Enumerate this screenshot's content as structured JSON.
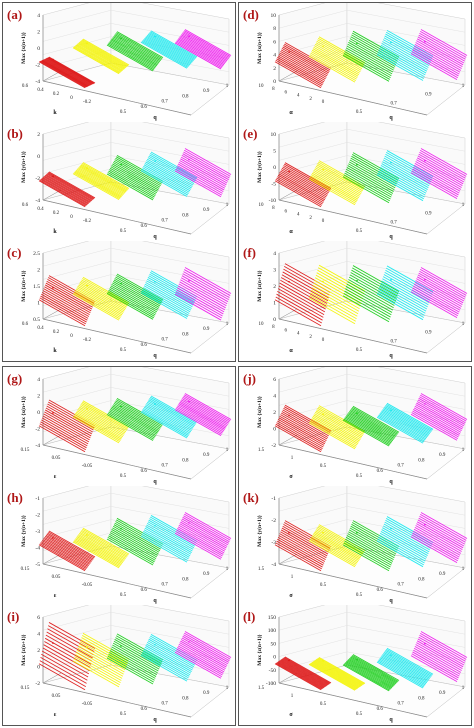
{
  "chart_data": [
    {
      "type": "scatter",
      "panel_label": "(a)",
      "zlabel": "Max {x(n+1)}",
      "ylabel": "k",
      "xlabel": "q",
      "ztick_labels": [
        "4",
        "2",
        "0",
        "-2",
        "-4"
      ],
      "yticks": [
        "0.6",
        "0.4",
        "0.2",
        "0",
        "-0.2"
      ],
      "xticks": [
        "0.5",
        "0.6",
        "0.7",
        "0.8",
        "0.9",
        "1"
      ],
      "series": [
        {
          "color": "#dd1111",
          "values": [
            {
              "x": 0.5,
              "y": [
                -2.2,
                -1.5
              ]
            }
          ]
        },
        {
          "color": "#f4f400",
          "values": [
            {
              "x": 0.6,
              "y": [
                0.5,
                1.8
              ]
            }
          ]
        },
        {
          "color": "#11cc11",
          "values": [
            {
              "x": 0.7,
              "y": [
                1.5,
                3.5
              ]
            }
          ]
        },
        {
          "color": "#11e8ee",
          "values": [
            {
              "x": 0.8,
              "y": [
                2.5,
                4.2
              ]
            }
          ]
        },
        {
          "color": "#ee11ee",
          "values": [
            {
              "x": 0.9,
              "y": [
                3.0,
                5.0
              ]
            }
          ]
        }
      ]
    },
    {
      "type": "scatter",
      "panel_label": "(b)",
      "zlabel": "Max {y(n+1)}",
      "ylabel": "k",
      "xlabel": "q",
      "ztick_labels": [
        "2",
        "0",
        "-2",
        "-4"
      ],
      "yticks": [
        "0.6",
        "0.4",
        "0.2",
        "0",
        "-0.2"
      ],
      "xticks": [
        "0.5",
        "0.6",
        "0.7",
        "0.8",
        "0.9",
        "1"
      ],
      "series": [
        {
          "color": "#dd1111",
          "values": [
            {
              "x": 0.5,
              "y": [
                -4.0,
                -2.8
              ]
            }
          ]
        },
        {
          "color": "#f4f400",
          "values": [
            {
              "x": 0.6,
              "y": [
                -2.5,
                -1.0
              ]
            }
          ]
        },
        {
          "color": "#11cc11",
          "values": [
            {
              "x": 0.7,
              "y": [
                -2.0,
                0.5
              ]
            }
          ]
        },
        {
          "color": "#11e8ee",
          "values": [
            {
              "x": 0.8,
              "y": [
                -1.0,
                1.5
              ]
            }
          ]
        },
        {
          "color": "#ee11ee",
          "values": [
            {
              "x": 0.9,
              "y": [
                -0.5,
                2.5
              ]
            }
          ]
        }
      ]
    },
    {
      "type": "scatter",
      "panel_label": "(c)",
      "zlabel": "Max {z(n+1)}",
      "ylabel": "k",
      "xlabel": "q",
      "ztick_labels": [
        "2.5",
        "2",
        "1.5",
        "1",
        "0.5"
      ],
      "yticks": [
        "0.6",
        "0.4",
        "0.2",
        "0",
        "-0.2"
      ],
      "xticks": [
        "0.5",
        "0.6",
        "0.7",
        "0.8",
        "0.9",
        "1"
      ],
      "series": [
        {
          "color": "#dd1111",
          "values": [
            {
              "x": 0.5,
              "y": [
                0.6,
                1.6
              ]
            }
          ]
        },
        {
          "color": "#f4f400",
          "values": [
            {
              "x": 0.6,
              "y": [
                1.0,
                1.7
              ]
            }
          ]
        },
        {
          "color": "#11cc11",
          "values": [
            {
              "x": 0.7,
              "y": [
                1.2,
                2.0
              ]
            }
          ]
        },
        {
          "color": "#11e8ee",
          "values": [
            {
              "x": 0.8,
              "y": [
                1.4,
                2.3
              ]
            }
          ]
        },
        {
          "color": "#ee11ee",
          "values": [
            {
              "x": 0.9,
              "y": [
                1.5,
                2.6
              ]
            }
          ]
        }
      ]
    },
    {
      "type": "scatter",
      "panel_label": "(d)",
      "zlabel": "Max {x(n+1)}",
      "ylabel": "α",
      "xlabel": "q",
      "ztick_labels": [
        "10",
        "8",
        "6",
        "4",
        "2",
        "0"
      ],
      "yticks": [
        "10",
        "8",
        "6",
        "4",
        "2",
        "0"
      ],
      "xticks": [
        "0.5",
        "0.7",
        "0.9",
        "1"
      ],
      "series": [
        {
          "color": "#dd1111",
          "values": [
            {
              "x": 0.5,
              "y": [
                0,
                4
              ]
            }
          ]
        },
        {
          "color": "#f4f400",
          "values": [
            {
              "x": 0.6,
              "y": [
                2,
                6
              ]
            }
          ]
        },
        {
          "color": "#11cc11",
          "values": [
            {
              "x": 0.7,
              "y": [
                3,
                8
              ]
            }
          ]
        },
        {
          "color": "#11e8ee",
          "values": [
            {
              "x": 0.8,
              "y": [
                4,
                9
              ]
            }
          ]
        },
        {
          "color": "#ee11ee",
          "values": [
            {
              "x": 0.9,
              "y": [
                5,
                10
              ]
            }
          ]
        }
      ]
    },
    {
      "type": "scatter",
      "panel_label": "(e)",
      "zlabel": "Max {y(n+1)}",
      "ylabel": "α",
      "xlabel": "q",
      "ztick_labels": [
        "10",
        "5",
        "0",
        "-5",
        "-10"
      ],
      "yticks": [
        "10",
        "8",
        "6",
        "4",
        "2",
        "0"
      ],
      "xticks": [
        "0.5",
        "0.7",
        "0.9",
        "1"
      ],
      "series": [
        {
          "color": "#dd1111",
          "values": [
            {
              "x": 0.5,
              "y": [
                -5,
                -2
              ]
            }
          ]
        },
        {
          "color": "#f4f400",
          "values": [
            {
              "x": 0.6,
              "y": [
                -4,
                -1
              ]
            }
          ]
        },
        {
          "color": "#11cc11",
          "values": [
            {
              "x": 0.7,
              "y": [
                -3,
                1
              ]
            }
          ]
        },
        {
          "color": "#11e8ee",
          "values": [
            {
              "x": 0.8,
              "y": [
                -2,
                2
              ]
            }
          ]
        },
        {
          "color": "#ee11ee",
          "values": [
            {
              "x": 0.9,
              "y": [
                -1,
                3
              ]
            }
          ]
        }
      ]
    },
    {
      "type": "scatter",
      "panel_label": "(f)",
      "zlabel": "Max {z(n+1)}",
      "ylabel": "α",
      "xlabel": "q",
      "ztick_labels": [
        "4",
        "3",
        "2",
        "1",
        "0"
      ],
      "yticks": [
        "10",
        "8",
        "6",
        "4",
        "2",
        "0"
      ],
      "xticks": [
        "0.5",
        "0.7",
        "0.9",
        "1"
      ],
      "series": [
        {
          "color": "#dd1111",
          "values": [
            {
              "x": 0.5,
              "y": [
                0,
                3
              ]
            }
          ]
        },
        {
          "color": "#f4f400",
          "values": [
            {
              "x": 0.6,
              "y": [
                0.5,
                3.2
              ]
            }
          ]
        },
        {
          "color": "#11cc11",
          "values": [
            {
              "x": 0.7,
              "y": [
                1,
                3.5
              ]
            }
          ]
        },
        {
          "color": "#11e8ee",
          "values": [
            {
              "x": 0.8,
              "y": [
                1.5,
                3.8
              ]
            }
          ]
        },
        {
          "color": "#ee11ee",
          "values": [
            {
              "x": 0.9,
              "y": [
                2,
                4
              ]
            }
          ]
        }
      ]
    },
    {
      "type": "scatter",
      "panel_label": "(g)",
      "zlabel": "Max {x(n+1)}",
      "ylabel": "ε",
      "xlabel": "q",
      "ztick_labels": [
        "4",
        "2",
        "0",
        "-2",
        "-4"
      ],
      "yticks": [
        "0.15",
        "0.05",
        "-0.05"
      ],
      "xticks": [
        "0.5",
        "0.6",
        "0.7",
        "0.8",
        "0.9",
        "1"
      ],
      "series": [
        {
          "color": "#dd1111",
          "values": [
            {
              "x": 0.5,
              "y": [
                -3,
                1
              ]
            }
          ]
        },
        {
          "color": "#f4f400",
          "values": [
            {
              "x": 0.6,
              "y": [
                -1,
                1.5
              ]
            }
          ]
        },
        {
          "color": "#11cc11",
          "values": [
            {
              "x": 0.7,
              "y": [
                0,
                2.5
              ]
            }
          ]
        },
        {
          "color": "#11e8ee",
          "values": [
            {
              "x": 0.8,
              "y": [
                1,
                3.5
              ]
            }
          ]
        },
        {
          "color": "#ee11ee",
          "values": [
            {
              "x": 0.9,
              "y": [
                2,
                4.5
              ]
            }
          ]
        }
      ]
    },
    {
      "type": "scatter",
      "panel_label": "(h)",
      "zlabel": "Max {y(n+1)}",
      "ylabel": "ε",
      "xlabel": "q",
      "ztick_labels": [
        "-1",
        "-2",
        "-3",
        "-4",
        "-5"
      ],
      "yticks": [
        "0.15",
        "0.05",
        "-0.05"
      ],
      "xticks": [
        "0.5",
        "0.6",
        "0.7",
        "0.8",
        "0.9",
        "1"
      ],
      "series": [
        {
          "color": "#dd1111",
          "values": [
            {
              "x": 0.5,
              "y": [
                -4.5,
                -3.5
              ]
            }
          ]
        },
        {
          "color": "#f4f400",
          "values": [
            {
              "x": 0.6,
              "y": [
                -4,
                -3
              ]
            }
          ]
        },
        {
          "color": "#11cc11",
          "values": [
            {
              "x": 0.7,
              "y": [
                -3.5,
                -2
              ]
            }
          ]
        },
        {
          "color": "#11e8ee",
          "values": [
            {
              "x": 0.8,
              "y": [
                -3,
                -1.5
              ]
            }
          ]
        },
        {
          "color": "#ee11ee",
          "values": [
            {
              "x": 0.9,
              "y": [
                -2.5,
                -1
              ]
            }
          ]
        }
      ]
    },
    {
      "type": "scatter",
      "panel_label": "(i)",
      "zlabel": "Max {z(n+1)}",
      "ylabel": "ε",
      "xlabel": "q",
      "ztick_labels": [
        "6",
        "4",
        "2",
        "0",
        "-2"
      ],
      "yticks": [
        "0.15",
        "0.05",
        "-0.05"
      ],
      "xticks": [
        "0.5",
        "0.6",
        "0.7",
        "0.8",
        "0.9",
        "1"
      ],
      "series": [
        {
          "color": "#dd1111",
          "values": [
            {
              "x": 0.5,
              "y": [
                -1,
                5
              ]
            }
          ]
        },
        {
          "color": "#f4f400",
          "values": [
            {
              "x": 0.6,
              "y": [
                0,
                4
              ]
            }
          ]
        },
        {
          "color": "#11cc11",
          "values": [
            {
              "x": 0.7,
              "y": [
                1,
                4.5
              ]
            }
          ]
        },
        {
          "color": "#11e8ee",
          "values": [
            {
              "x": 0.8,
              "y": [
                2,
                5
              ]
            }
          ]
        },
        {
          "color": "#ee11ee",
          "values": [
            {
              "x": 0.9,
              "y": [
                3,
                6
              ]
            }
          ]
        }
      ]
    },
    {
      "type": "scatter",
      "panel_label": "(j)",
      "zlabel": "Max {x(n+1)}",
      "ylabel": "σ",
      "xlabel": "q",
      "ztick_labels": [
        "6",
        "4",
        "2",
        "0",
        "-2"
      ],
      "yticks": [
        "1.5",
        "1",
        "0.5"
      ],
      "xticks": [
        "0.5",
        "0.6",
        "0.7",
        "0.8",
        "0.9",
        "1"
      ],
      "series": [
        {
          "color": "#dd1111",
          "values": [
            {
              "x": 0.5,
              "y": [
                -1,
                2
              ]
            }
          ]
        },
        {
          "color": "#f4f400",
          "values": [
            {
              "x": 0.6,
              "y": [
                0,
                2.5
              ]
            }
          ]
        },
        {
          "color": "#11cc11",
          "values": [
            {
              "x": 0.7,
              "y": [
                1,
                3
              ]
            }
          ]
        },
        {
          "color": "#11e8ee",
          "values": [
            {
              "x": 0.8,
              "y": [
                2,
                4
              ]
            }
          ]
        },
        {
          "color": "#ee11ee",
          "values": [
            {
              "x": 0.9,
              "y": [
                3,
                6
              ]
            }
          ]
        }
      ]
    },
    {
      "type": "scatter",
      "panel_label": "(k)",
      "zlabel": "Max {y(n+1)}",
      "ylabel": "σ",
      "xlabel": "q",
      "ztick_labels": [
        "-1",
        "-2",
        "-3",
        "-4"
      ],
      "yticks": [
        "1.5",
        "1",
        "0.5"
      ],
      "xticks": [
        "0.5",
        "0.6",
        "0.7",
        "0.8",
        "0.9",
        "1"
      ],
      "series": [
        {
          "color": "#dd1111",
          "values": [
            {
              "x": 0.5,
              "y": [
                -4,
                -2.5
              ]
            }
          ]
        },
        {
          "color": "#f4f400",
          "values": [
            {
              "x": 0.6,
              "y": [
                -3.5,
                -2.5
              ]
            }
          ]
        },
        {
          "color": "#11cc11",
          "values": [
            {
              "x": 0.7,
              "y": [
                -3.5,
                -2
              ]
            }
          ]
        },
        {
          "color": "#11e8ee",
          "values": [
            {
              "x": 0.8,
              "y": [
                -3,
                -1.5
              ]
            }
          ]
        },
        {
          "color": "#ee11ee",
          "values": [
            {
              "x": 0.9,
              "y": [
                -2.5,
                -1
              ]
            }
          ]
        }
      ]
    },
    {
      "type": "scatter",
      "panel_label": "(l)",
      "zlabel": "Max {z(n+1)}",
      "ylabel": "σ",
      "xlabel": "q",
      "ztick_labels": [
        "150",
        "100",
        "50",
        "0",
        "-50",
        "-100"
      ],
      "yticks": [
        "1.5",
        "1",
        "0.5"
      ],
      "xticks": [
        "0.5",
        "0.6",
        "0.7",
        "0.8",
        "0.9",
        "1"
      ],
      "series": [
        {
          "color": "#dd1111",
          "values": [
            {
              "x": 0.5,
              "y": [
                -20,
                0
              ]
            }
          ]
        },
        {
          "color": "#f4f400",
          "values": [
            {
              "x": 0.6,
              "y": [
                -10,
                10
              ]
            }
          ]
        },
        {
          "color": "#11cc11",
          "values": [
            {
              "x": 0.7,
              "y": [
                0,
                30
              ]
            }
          ]
        },
        {
          "color": "#11e8ee",
          "values": [
            {
              "x": 0.8,
              "y": [
                20,
                60
              ]
            }
          ]
        },
        {
          "color": "#ee11ee",
          "values": [
            {
              "x": 0.9,
              "y": [
                50,
                120
              ]
            }
          ]
        }
      ]
    }
  ]
}
